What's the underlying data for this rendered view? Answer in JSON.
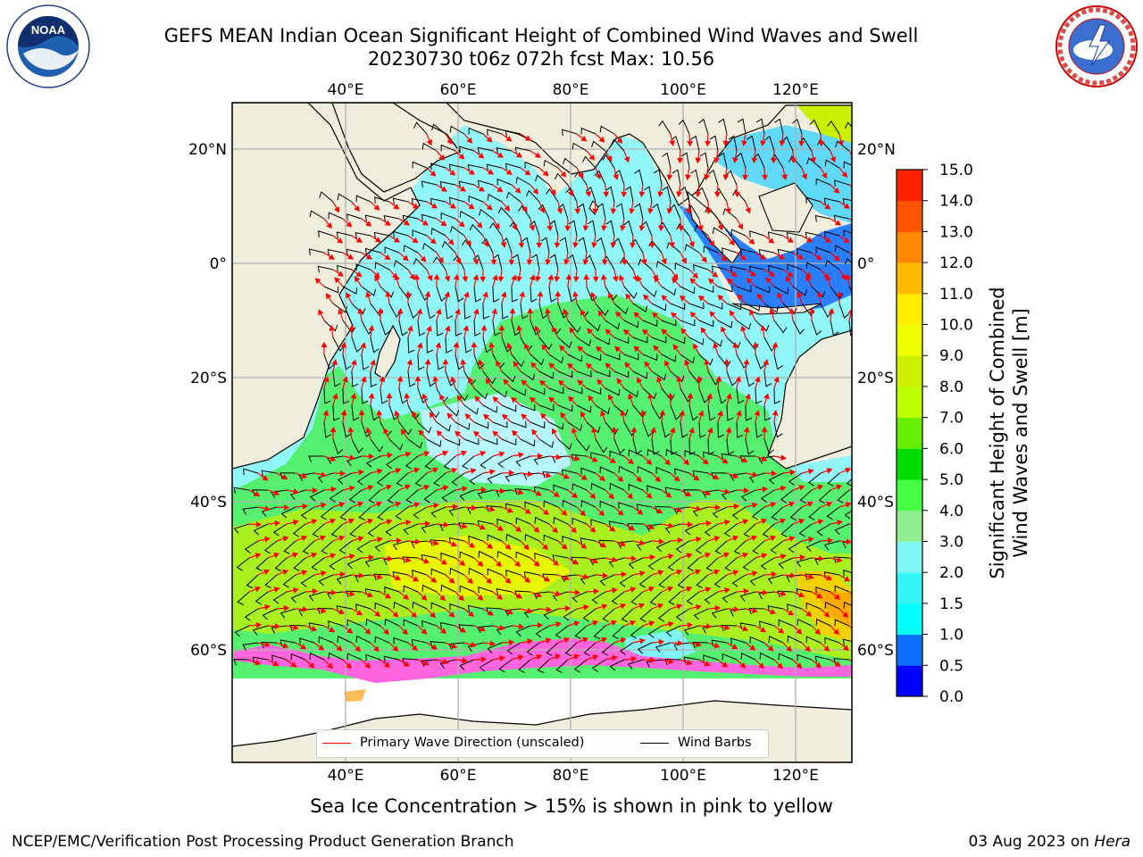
{
  "header": {
    "title_line1": "GEFS MEAN Indian Ocean Significant Height of Combined Wind Waves and Swell",
    "title_line2": "20230730 t06z 072h fcst   Max: 10.56"
  },
  "logos": {
    "left": {
      "icon": "noaa-logo-icon",
      "text": "NOAA"
    },
    "right": {
      "icon": "nws-logo-icon"
    }
  },
  "axes": {
    "lon_ticks": [
      "40°E",
      "60°E",
      "80°E",
      "100°E",
      "120°E"
    ],
    "lat_ticks": [
      "20°N",
      "0°",
      "20°S",
      "40°S",
      "60°S"
    ]
  },
  "colorbar": {
    "label_line1": "Significant Height of Combined",
    "label_line2": "Wind Waves and Swell [m]",
    "ticks": [
      "0.0",
      "0.5",
      "1.0",
      "1.5",
      "2.0",
      "3.0",
      "4.0",
      "5.0",
      "6.0",
      "7.0",
      "8.0",
      "9.0",
      "10.0",
      "11.0",
      "12.0",
      "13.0",
      "14.0",
      "15.0"
    ],
    "colors": [
      "#0000ff",
      "#0d6efd",
      "#00ffff",
      "#33f5f5",
      "#7ff5f5",
      "#90ee90",
      "#44ff44",
      "#00dd00",
      "#66ee00",
      "#bbff00",
      "#ccee00",
      "#eeff00",
      "#ffee00",
      "#ffbb00",
      "#ff8800",
      "#ff5500",
      "#ff2200",
      "#ff0000"
    ]
  },
  "legend": {
    "wave_direction": "Primary Wave Direction (unscaled)",
    "wave_direction_color": "#ff0000",
    "wind_barbs": "Wind Barbs",
    "wind_barbs_color": "#000000"
  },
  "notes": {
    "ice": "Sea Ice Concentration > 15% is shown in pink to yellow"
  },
  "footer": {
    "left": "NCEP/EMC/Verification Post Processing Product Generation Branch",
    "date": "03 Aug 2023 on",
    "machine": "Hera"
  }
}
